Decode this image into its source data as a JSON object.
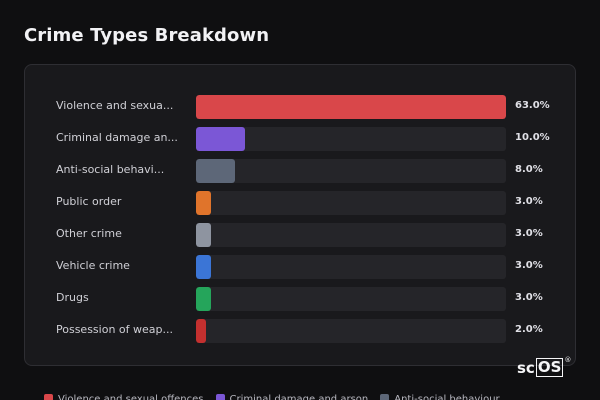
{
  "title": "Crime Types Breakdown",
  "brand": {
    "prefix": "sc",
    "boxed": "OS",
    "mark": "®"
  },
  "chart_data": {
    "type": "bar",
    "orientation": "horizontal",
    "xlim": [
      0,
      63
    ],
    "categories": [
      "Violence and sexua...",
      "Criminal damage an...",
      "Anti-social behavi...",
      "Public order",
      "Other crime",
      "Vehicle crime",
      "Drugs",
      "Possession of weap..."
    ],
    "values": [
      63.0,
      10.0,
      8.0,
      3.0,
      3.0,
      3.0,
      3.0,
      2.0
    ],
    "value_labels": [
      "63.0%",
      "10.0%",
      "8.0%",
      "3.0%",
      "3.0%",
      "3.0%",
      "3.0%",
      "2.0%"
    ],
    "colors": [
      "#d9474a",
      "#7b57d6",
      "#5d6778",
      "#e0742b",
      "#8e94a0",
      "#3b75d6",
      "#25a55b",
      "#c4302f"
    ],
    "legend": {
      "placement": "bottom",
      "entries": [
        {
          "label": "Violence and sexual offences",
          "color": "#d9474a"
        },
        {
          "label": "Criminal damage and arson",
          "color": "#7b57d6"
        },
        {
          "label": "Anti-social behaviour",
          "color": "#5d6778"
        }
      ]
    }
  }
}
